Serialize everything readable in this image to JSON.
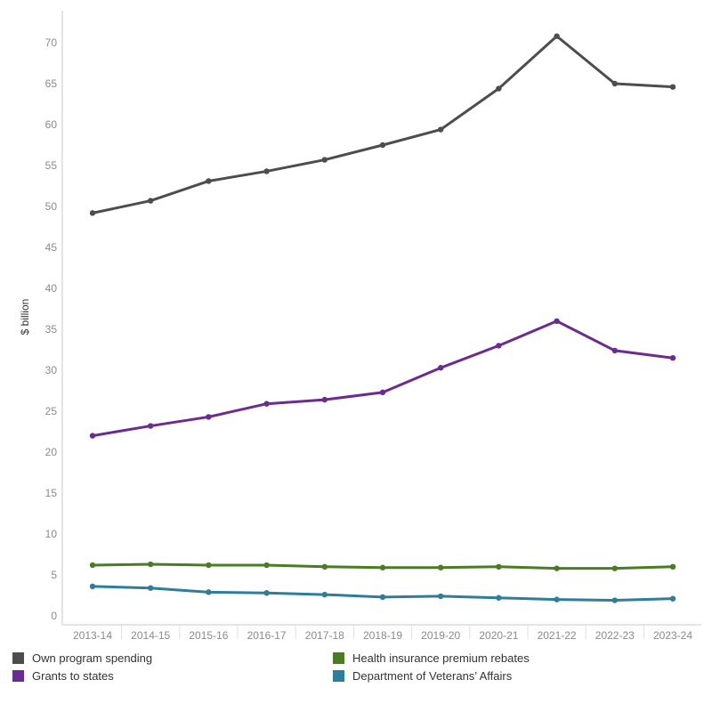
{
  "chart_data": {
    "type": "line",
    "ylabel": "$ billion",
    "xlabel": "",
    "ylim": [
      0,
      75
    ],
    "yticks": [
      0,
      5,
      10,
      15,
      20,
      25,
      30,
      35,
      40,
      45,
      50,
      55,
      60,
      65,
      70
    ],
    "categories": [
      "2013-14",
      "2014-15",
      "2015-16",
      "2016-17",
      "2017-18",
      "2018-19",
      "2019-20",
      "2020-21",
      "2021-22",
      "2022-23",
      "2023-24"
    ],
    "grid": false,
    "legend_position": "bottom",
    "series": [
      {
        "name": "Own program spending",
        "color": "#4d4d4d",
        "values": [
          49.2,
          50.7,
          53.1,
          54.3,
          55.7,
          57.5,
          59.4,
          64.4,
          70.8,
          65.0,
          64.6
        ]
      },
      {
        "name": "Grants to states",
        "color": "#6b2c91",
        "values": [
          22.0,
          23.2,
          24.3,
          25.9,
          26.4,
          27.3,
          30.3,
          33.0,
          36.0,
          32.4,
          31.5
        ]
      },
      {
        "name": "Health insurance premium rebates",
        "color": "#4a7c23",
        "values": [
          6.2,
          6.3,
          6.2,
          6.2,
          6.0,
          5.9,
          5.9,
          6.0,
          5.8,
          5.8,
          6.0
        ]
      },
      {
        "name": "Department of Veterans’ Affairs",
        "color": "#2e7d9a",
        "values": [
          3.6,
          3.4,
          2.9,
          2.8,
          2.6,
          2.3,
          2.4,
          2.2,
          2.0,
          1.9,
          2.1
        ]
      }
    ]
  }
}
